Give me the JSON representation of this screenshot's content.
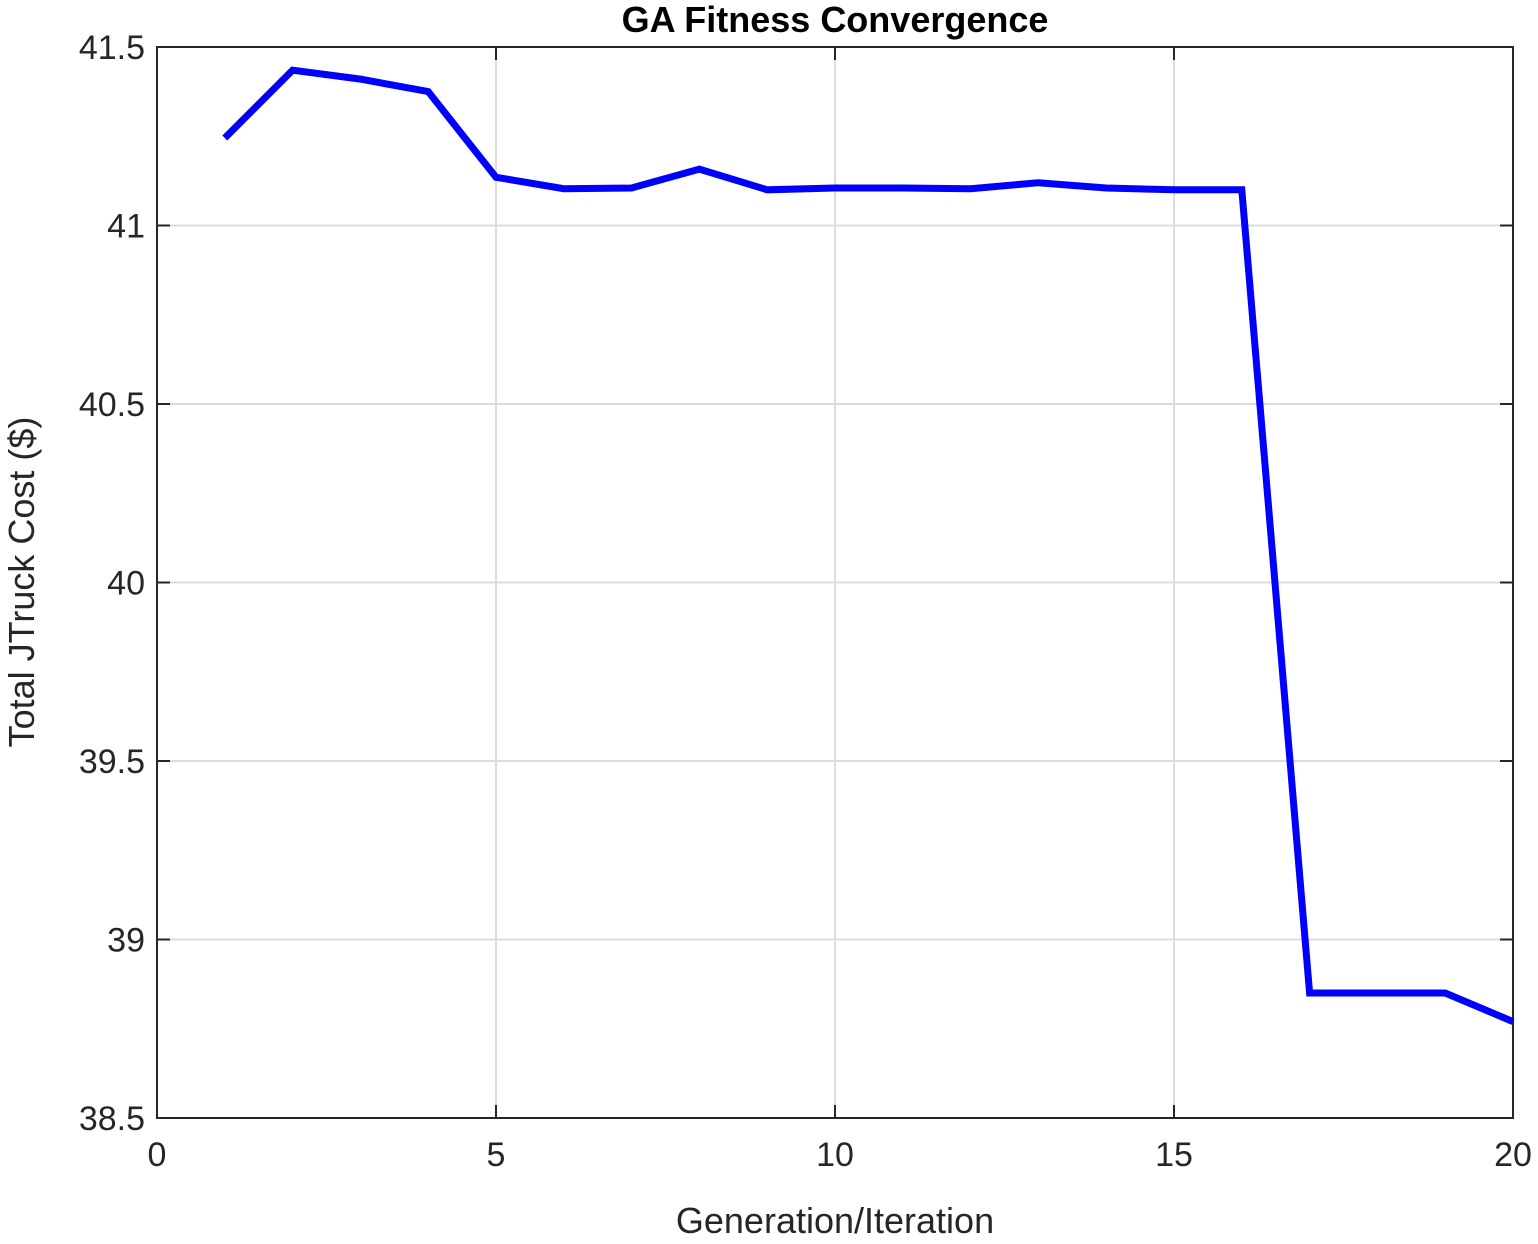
{
  "chart_data": {
    "type": "line",
    "title": "GA Fitness Convergence",
    "xlabel": "Generation/Iteration",
    "ylabel": "Total JTruck Cost ($)",
    "xlim": [
      0,
      20
    ],
    "ylim": [
      38.5,
      41.5
    ],
    "xticks": [
      0,
      5,
      10,
      15,
      20
    ],
    "yticks": [
      38.5,
      39,
      39.5,
      40,
      40.5,
      41,
      41.5
    ],
    "xtick_labels": [
      "0",
      "5",
      "10",
      "15",
      "20"
    ],
    "ytick_labels": [
      "38.5",
      "39",
      "39.5",
      "40",
      "40.5",
      "41",
      "41.5"
    ],
    "grid": true,
    "series": [
      {
        "color": "#0000ff",
        "x": [
          1,
          2,
          3,
          4,
          5,
          6,
          7,
          8,
          9,
          10,
          11,
          12,
          13,
          14,
          15,
          16,
          17,
          18,
          19,
          20
        ],
        "y": [
          41.245,
          41.435,
          41.41,
          41.375,
          41.135,
          41.103,
          41.105,
          41.158,
          41.1,
          41.105,
          41.105,
          41.103,
          41.12,
          41.105,
          41.1,
          41.1,
          38.85,
          38.85,
          38.85,
          38.77
        ]
      }
    ]
  }
}
